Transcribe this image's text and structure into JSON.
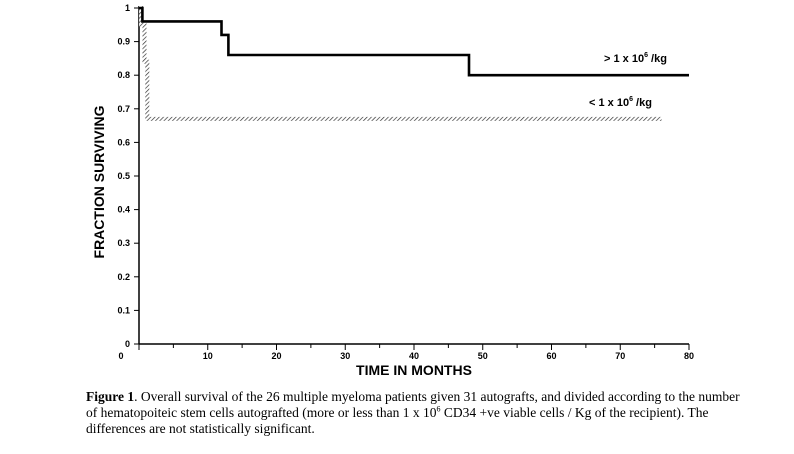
{
  "chart_data": {
    "type": "line",
    "subtype": "step (Kaplan-Meier survival curve)",
    "xlabel": "TIME  IN  MONTHS",
    "ylabel": "FRACTION SURVIVING",
    "xlim": [
      0,
      80
    ],
    "ylim": [
      0,
      1
    ],
    "x_ticks": [
      0,
      10,
      20,
      30,
      40,
      50,
      60,
      70,
      80
    ],
    "y_ticks": [
      0,
      0.1,
      0.2,
      0.3,
      0.4,
      0.5,
      0.6,
      0.7,
      0.8,
      0.9,
      1
    ],
    "x_tick_labels": [
      "0",
      "10",
      "20",
      "30",
      "40",
      "50",
      "60",
      "70",
      "80"
    ],
    "y_tick_labels": [
      "0",
      "0.1",
      "0.2",
      "0.3",
      "0.4",
      "0.5",
      "0.6",
      "0.7",
      "0.8",
      "0.9",
      "1"
    ],
    "grid": false,
    "series": [
      {
        "name": "> 1 x 10^6 /kg",
        "label_main": "> 1 x 10",
        "label_sup": "6",
        "label_tail": " /kg",
        "style": "solid black",
        "color": "#000000",
        "points": [
          [
            0,
            1
          ],
          [
            0.5,
            1
          ],
          [
            0.5,
            0.96
          ],
          [
            12,
            0.96
          ],
          [
            12,
            0.92
          ],
          [
            13,
            0.92
          ],
          [
            13,
            0.86
          ],
          [
            48,
            0.86
          ],
          [
            48,
            0.8
          ],
          [
            80,
            0.8
          ]
        ]
      },
      {
        "name": "< 1 x 10^6 /kg",
        "label_main": "< 1 x 10",
        "label_sup": "6",
        "label_tail": " /kg",
        "style": "hatched grey",
        "color": "#555555",
        "points": [
          [
            0,
            1
          ],
          [
            0.3,
            1
          ],
          [
            0.3,
            0.95
          ],
          [
            0.8,
            0.95
          ],
          [
            0.8,
            0.84
          ],
          [
            1.2,
            0.84
          ],
          [
            1.2,
            0.67
          ],
          [
            76,
            0.67
          ]
        ]
      }
    ]
  },
  "caption": {
    "label": "Figure 1",
    "text_1": ". Overall survival of the 26 multiple myeloma patients given 31 autografts, and divided according to the number of hematopoiteic stem cells autografted (more or less than 1 x 10",
    "sup": "6",
    "text_2": " CD34 +ve viable cells / Kg of the recipient). The differences are not statistically significant."
  }
}
